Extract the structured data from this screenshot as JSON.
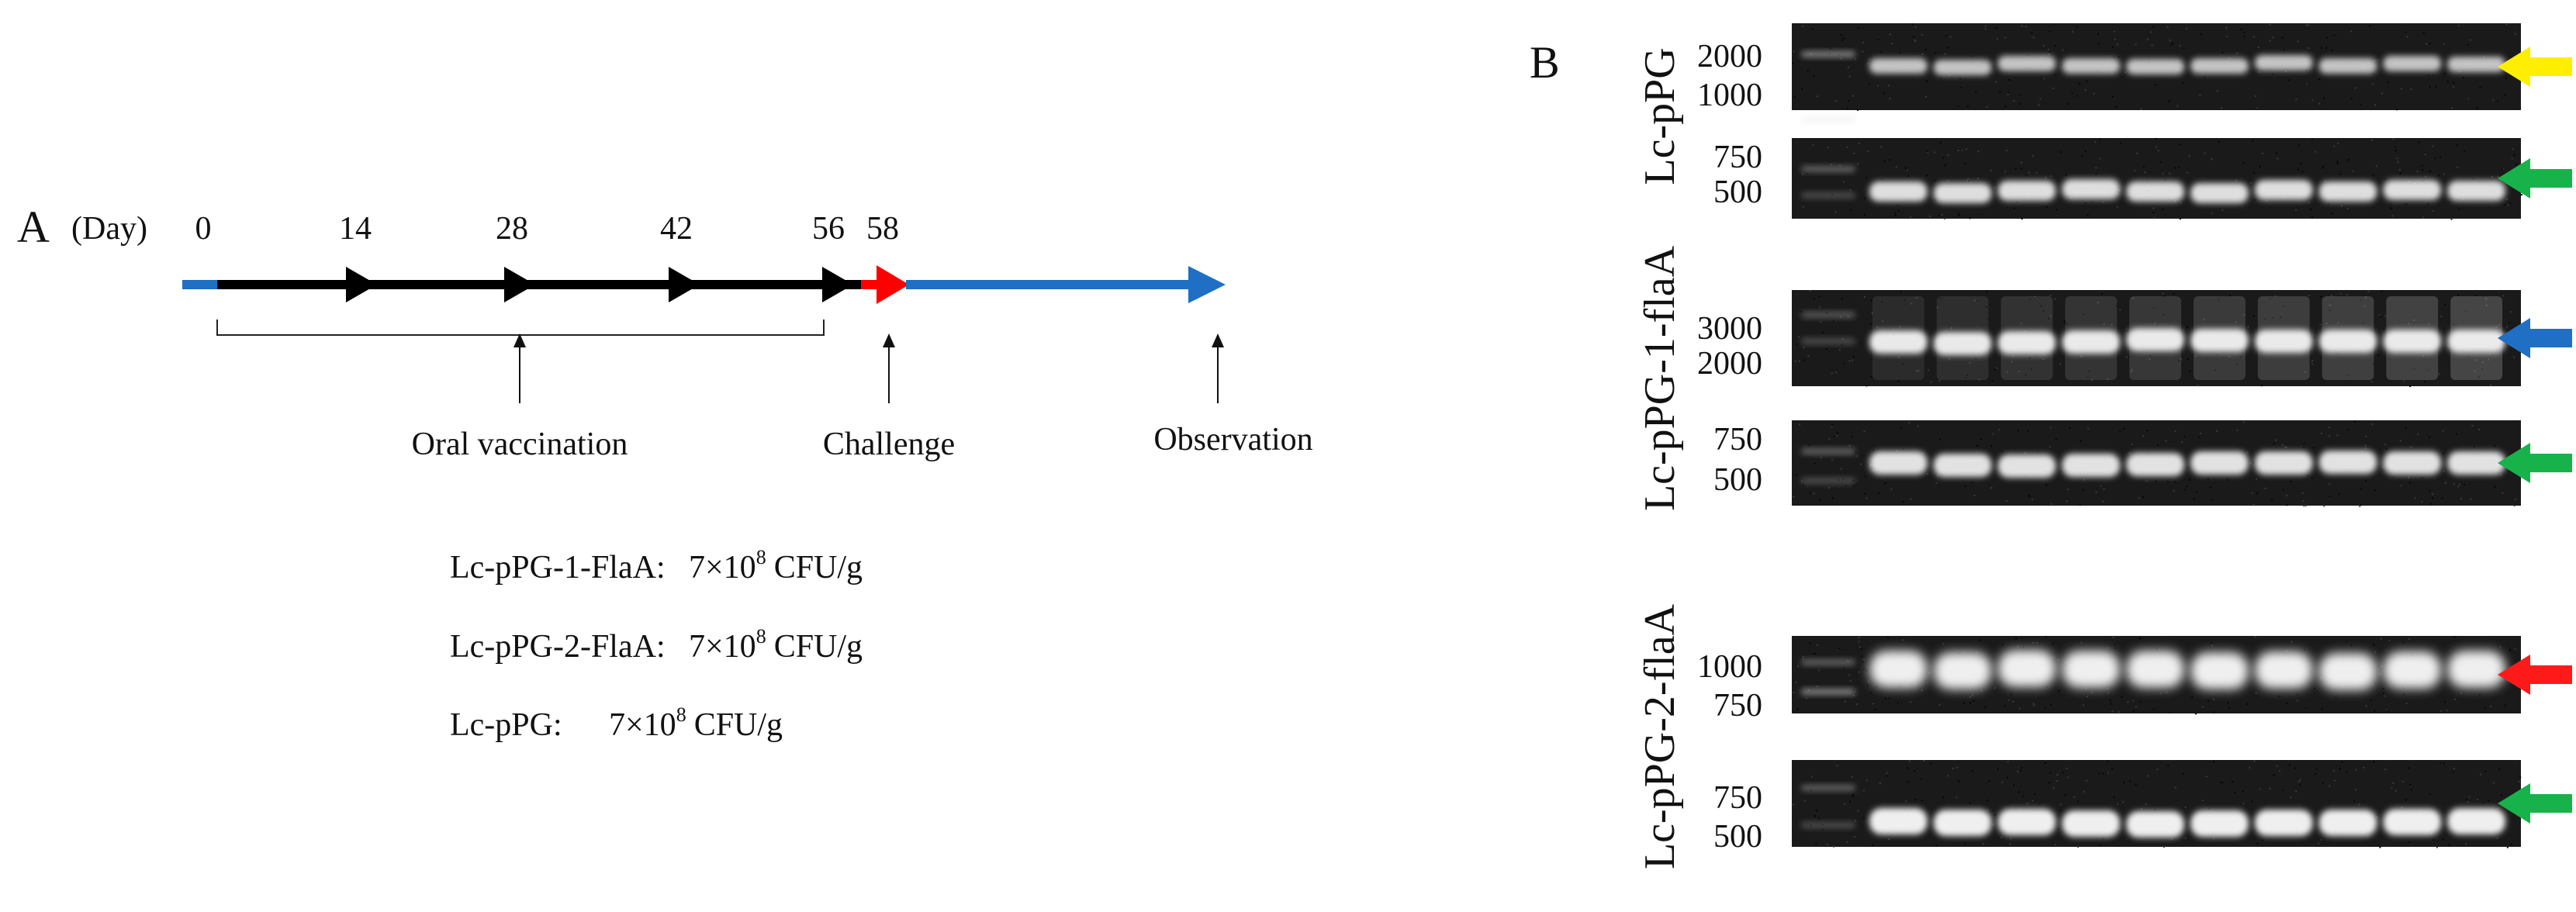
{
  "panel_a": {
    "label": "A",
    "unit_label": "(Day)",
    "days": [
      "0",
      "14",
      "28",
      "42",
      "56",
      "58"
    ],
    "phases": [
      {
        "name": "Oral vaccination"
      },
      {
        "name": "Challenge"
      },
      {
        "name": "Observation"
      }
    ],
    "doses": [
      {
        "strain": "Lc-pPG-1-FlaA:",
        "amount": "7×10",
        "exponent": "8",
        "unit": "CFU/g"
      },
      {
        "strain": "Lc-pPG-2-FlaA:",
        "amount": "7×10",
        "exponent": "8",
        "unit": "CFU/g"
      },
      {
        "strain": "Lc-pPG:",
        "amount": "7×10",
        "exponent": "8",
        "unit": "CFU/g"
      }
    ],
    "colors": {
      "pre": "#1f6fc5",
      "vaccination": "#000000",
      "challenge": "#ff0000",
      "observation": "#1f6fc5"
    }
  },
  "panel_b": {
    "label": "B",
    "lanes_per_gel": 10,
    "groups": [
      {
        "name": "Lc-pPG",
        "gels": [
          {
            "markers": [
              "2000",
              "1000"
            ],
            "arrow_color": "#ffee00"
          },
          {
            "markers": [
              "750",
              "500"
            ],
            "arrow_color": "#17b34a"
          }
        ]
      },
      {
        "name": "Lc-pPG-1-flaA",
        "gels": [
          {
            "markers": [
              "3000",
              "2000"
            ],
            "arrow_color": "#1f6fc5"
          },
          {
            "markers": [
              "750",
              "500"
            ],
            "arrow_color": "#17b34a"
          }
        ]
      },
      {
        "name": "Lc-pPG-2-flaA",
        "gels": [
          {
            "markers": [
              "1000",
              "750"
            ],
            "arrow_color": "#ff1a1a"
          },
          {
            "markers": [
              "750",
              "500"
            ],
            "arrow_color": "#17b34a"
          }
        ]
      }
    ]
  }
}
